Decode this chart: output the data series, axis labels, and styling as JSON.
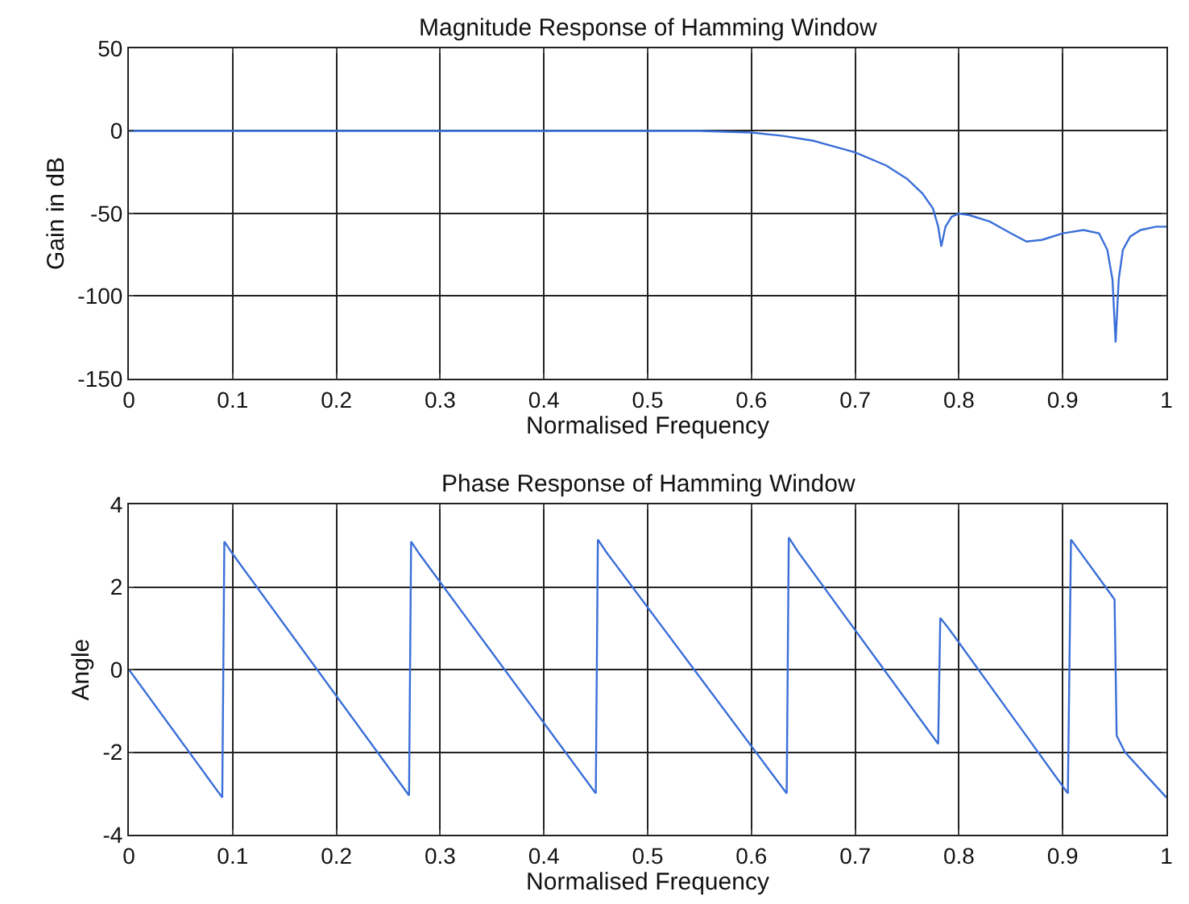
{
  "chart_data": [
    {
      "type": "line",
      "title": "Magnitude Response of Hamming Window",
      "xlabel": "Normalised Frequency",
      "ylabel": "Gain in dB",
      "xlim": [
        0,
        1
      ],
      "ylim": [
        -150,
        50
      ],
      "xticks": [
        0,
        0.1,
        0.2,
        0.3,
        0.4,
        0.5,
        0.6,
        0.7,
        0.8,
        0.9,
        1
      ],
      "yticks": [
        -150,
        -100,
        -50,
        0,
        50
      ],
      "grid": true,
      "series": [
        {
          "color": "#3a6fd8",
          "x": [
            0,
            0.1,
            0.2,
            0.3,
            0.4,
            0.5,
            0.55,
            0.6,
            0.63,
            0.66,
            0.7,
            0.73,
            0.75,
            0.765,
            0.775,
            0.78,
            0.783,
            0.787,
            0.793,
            0.8,
            0.81,
            0.83,
            0.85,
            0.865,
            0.88,
            0.9,
            0.92,
            0.935,
            0.943,
            0.948,
            0.951,
            0.954,
            0.958,
            0.965,
            0.975,
            0.99,
            1.0
          ],
          "values": [
            0,
            0,
            0,
            0,
            0,
            0,
            0,
            -1,
            -3,
            -6,
            -13,
            -21,
            -29,
            -38,
            -47,
            -58,
            -70,
            -58,
            -52,
            -50,
            -51,
            -55,
            -62,
            -67,
            -66,
            -62,
            -60,
            -62,
            -72,
            -90,
            -128,
            -90,
            -72,
            -64,
            -60,
            -58,
            -58
          ]
        }
      ]
    },
    {
      "type": "line",
      "title": "Phase Response of Hamming Window",
      "xlabel": "Normalised Frequency",
      "ylabel": "Angle",
      "xlim": [
        0,
        1
      ],
      "ylim": [
        -4,
        4
      ],
      "xticks": [
        0,
        0.1,
        0.2,
        0.3,
        0.4,
        0.5,
        0.6,
        0.7,
        0.8,
        0.9,
        1
      ],
      "yticks": [
        -4,
        -2,
        0,
        2,
        4
      ],
      "grid": true,
      "series": [
        {
          "color": "#3a6fd8",
          "x": [
            0,
            0.09,
            0.092,
            0.1,
            0.27,
            0.272,
            0.28,
            0.45,
            0.452,
            0.46,
            0.634,
            0.636,
            0.645,
            0.78,
            0.782,
            0.79,
            0.905,
            0.908,
            0.95,
            0.952,
            0.96,
            1.0
          ],
          "values": [
            0,
            -3.1,
            3.1,
            2.8,
            -3.05,
            3.1,
            2.8,
            -3.0,
            3.15,
            2.85,
            -3.0,
            3.2,
            2.85,
            -1.8,
            1.25,
            1.0,
            -3.0,
            3.15,
            1.7,
            -1.6,
            -2.0,
            -3.1
          ]
        }
      ]
    }
  ]
}
